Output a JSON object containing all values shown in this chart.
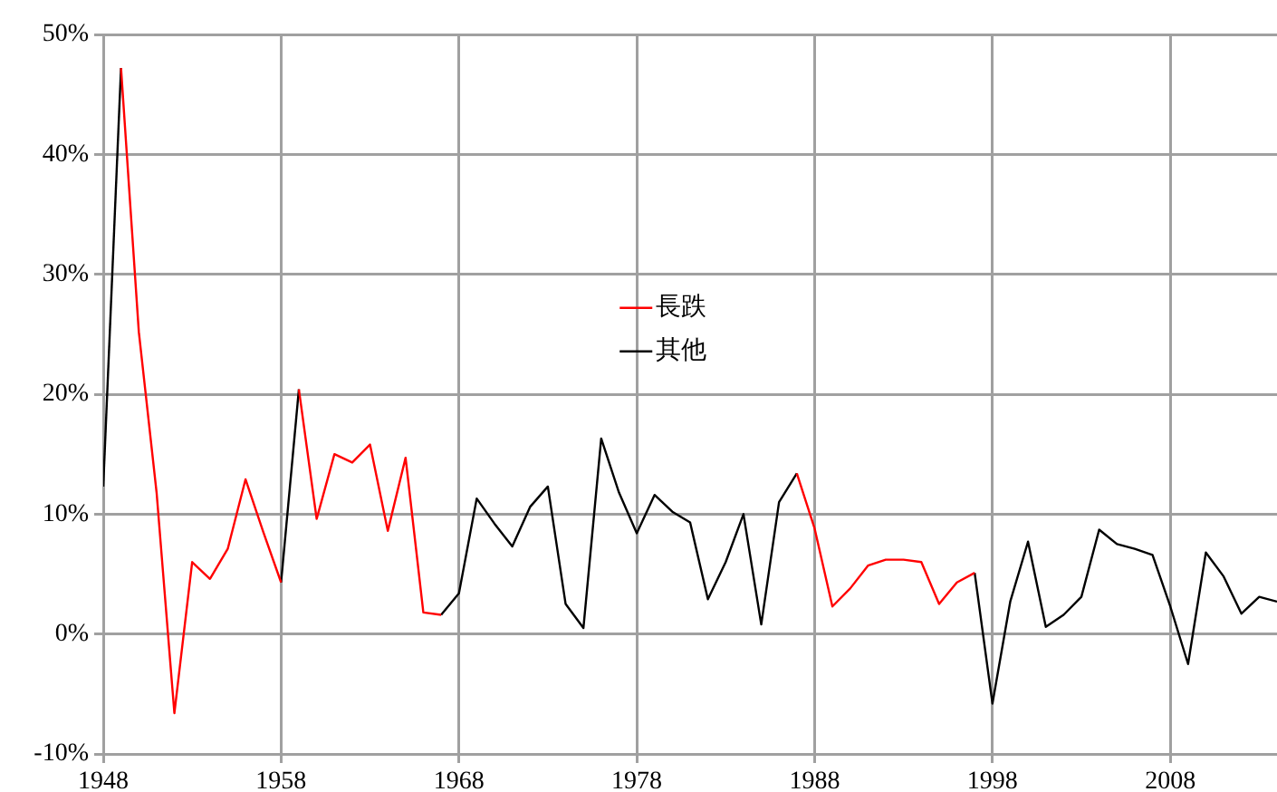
{
  "chart_data": {
    "type": "line",
    "x": [
      1948,
      1949,
      1950,
      1951,
      1952,
      1953,
      1954,
      1955,
      1956,
      1957,
      1958,
      1959,
      1960,
      1961,
      1962,
      1963,
      1964,
      1965,
      1966,
      1967,
      1968,
      1969,
      1970,
      1971,
      1972,
      1973,
      1974,
      1975,
      1976,
      1977,
      1978,
      1979,
      1980,
      1981,
      1982,
      1983,
      1984,
      1985,
      1986,
      1987,
      1988,
      1989,
      1990,
      1991,
      1992,
      1993,
      1994,
      1995,
      1996,
      1997,
      1998,
      1999,
      2000,
      2001,
      2002,
      2003,
      2004,
      2005,
      2006,
      2007,
      2008,
      2009,
      2010,
      2011,
      2012,
      2013,
      2014
    ],
    "series": [
      {
        "name": "長跌",
        "color": "#ff0000",
        "values": [
          null,
          47.2,
          25.2,
          11.8,
          -6.6,
          6.0,
          4.6,
          7.1,
          12.9,
          8.5,
          4.3,
          20.4,
          9.6,
          15.0,
          14.3,
          15.8,
          8.6,
          14.7,
          1.8,
          1.6,
          null,
          null,
          null,
          null,
          null,
          null,
          null,
          null,
          null,
          null,
          null,
          null,
          null,
          null,
          null,
          null,
          null,
          null,
          null,
          13.4,
          8.8,
          2.3,
          3.8,
          5.7,
          6.2,
          6.2,
          6.0,
          2.5,
          4.3,
          5.1,
          null,
          null,
          null,
          null,
          null,
          null,
          null,
          null,
          null,
          null,
          null,
          null,
          null,
          null,
          null,
          null,
          null
        ]
      },
      {
        "name": "其他",
        "color": "#000000",
        "values": [
          12.3,
          47.2,
          null,
          null,
          null,
          null,
          null,
          null,
          null,
          null,
          4.3,
          20.4,
          null,
          null,
          null,
          null,
          null,
          null,
          null,
          1.6,
          3.4,
          11.3,
          9.2,
          7.3,
          10.6,
          12.3,
          2.5,
          0.5,
          16.3,
          11.8,
          8.4,
          11.6,
          10.2,
          9.3,
          2.9,
          6.0,
          10.0,
          0.8,
          11.0,
          13.4,
          null,
          null,
          null,
          null,
          null,
          null,
          null,
          null,
          null,
          5.1,
          -5.8,
          2.7,
          7.7,
          0.6,
          1.6,
          3.1,
          8.7,
          7.5,
          7.1,
          6.6,
          2.3,
          -2.5,
          6.8,
          4.8,
          1.7,
          3.1,
          2.7
        ]
      }
    ],
    "xlim": [
      1948,
      2014
    ],
    "xticks": [
      1948,
      1958,
      1968,
      1978,
      1988,
      1998,
      2008
    ],
    "ylim": [
      -10,
      50
    ],
    "yticks": [
      {
        "value": -10,
        "label": "-10%"
      },
      {
        "value": 0,
        "label": "0%"
      },
      {
        "value": 10,
        "label": "10%"
      },
      {
        "value": 20,
        "label": "20%"
      },
      {
        "value": 30,
        "label": "30%"
      },
      {
        "value": 40,
        "label": "40%"
      },
      {
        "value": 50,
        "label": "50%"
      }
    ],
    "grid": true,
    "legend": "center",
    "marker": "none",
    "line_style": "solid"
  }
}
